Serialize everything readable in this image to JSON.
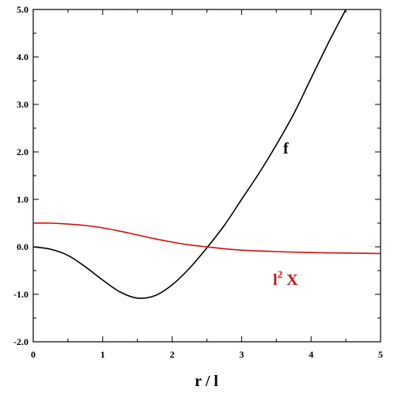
{
  "chart_data": {
    "type": "line",
    "title": "",
    "xlabel": "r / l",
    "ylabel": "",
    "xlim": [
      0,
      5
    ],
    "ylim": [
      -2.0,
      5.0
    ],
    "grid": false,
    "x_ticks": [
      "0",
      "1",
      "2",
      "3",
      "4",
      "5"
    ],
    "y_ticks": [
      "-2.0",
      "-1.0",
      "0.0",
      "1.0",
      "2.0",
      "3.0",
      "4.0",
      "5.0"
    ],
    "series": [
      {
        "name": "f",
        "color": "#000000",
        "x": [
          0,
          0.25,
          0.5,
          0.75,
          1.0,
          1.25,
          1.5,
          1.75,
          2.0,
          2.25,
          2.5,
          2.75,
          3.0,
          3.25,
          3.5,
          3.75,
          4.0,
          4.25,
          4.5
        ],
        "values": [
          0.0,
          -0.05,
          -0.18,
          -0.42,
          -0.7,
          -0.95,
          -1.08,
          -1.03,
          -0.8,
          -0.45,
          -0.02,
          0.45,
          1.0,
          1.55,
          2.15,
          2.8,
          3.55,
          4.3,
          5.0
        ]
      },
      {
        "name": "l²X",
        "label_main": "l",
        "label_sup": "2",
        "label_tail": " X",
        "color": "#d01010",
        "x": [
          0,
          0.25,
          0.5,
          0.75,
          1.0,
          1.25,
          1.5,
          1.75,
          2.0,
          2.25,
          2.5,
          2.75,
          3.0,
          3.5,
          4.0,
          4.5,
          5.0
        ],
        "values": [
          0.5,
          0.5,
          0.48,
          0.45,
          0.4,
          0.33,
          0.25,
          0.17,
          0.1,
          0.04,
          0.0,
          -0.04,
          -0.07,
          -0.1,
          -0.12,
          -0.13,
          -0.14
        ]
      }
    ]
  }
}
